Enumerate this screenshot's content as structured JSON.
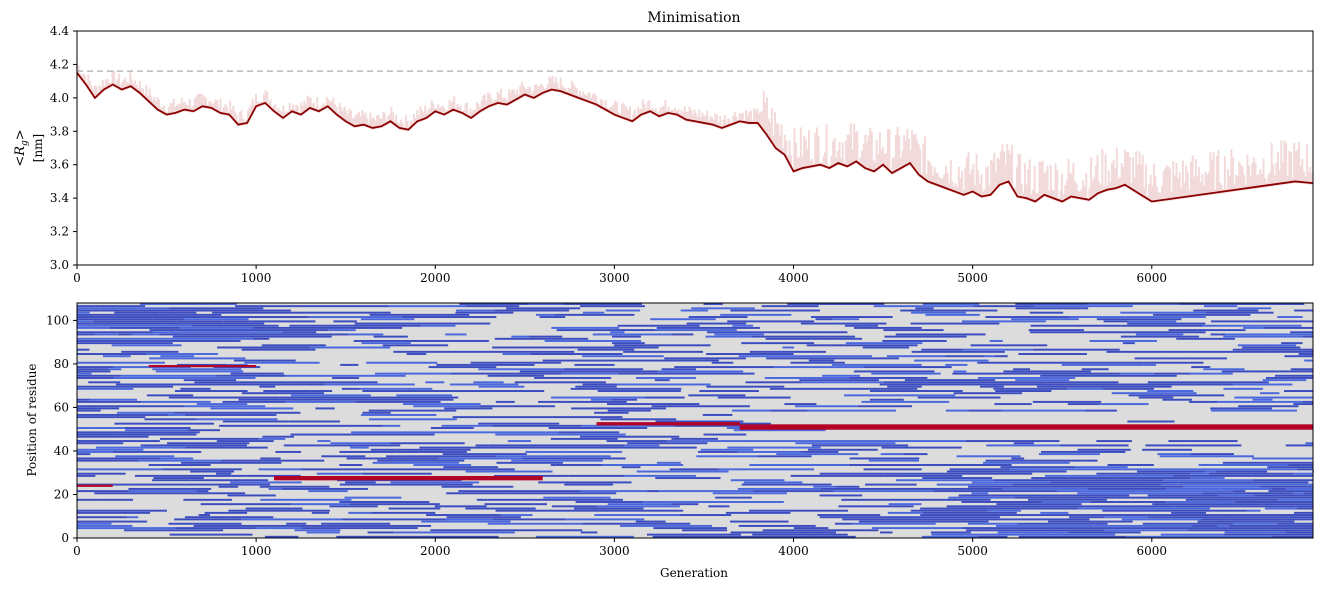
{
  "chart_data": [
    {
      "type": "line",
      "title": "Minimisation",
      "xlabel": "",
      "ylabel_math": "<R",
      "ylabel_sub": "g",
      "ylabel_close": ">",
      "ylabel_unit": "[nm]",
      "xlim": [
        0,
        6900
      ],
      "ylim": [
        3.0,
        4.4
      ],
      "xticks": [
        0,
        1000,
        2000,
        3000,
        4000,
        5000,
        6000
      ],
      "xtick_labels": [
        "0",
        "1000",
        "2000",
        "3000",
        "4000",
        "5000",
        "6000"
      ],
      "yticks": [
        3.0,
        3.2,
        3.4,
        3.6,
        3.8,
        4.0,
        4.2,
        4.4
      ],
      "ytick_labels": [
        "3.0",
        "3.2",
        "3.4",
        "3.6",
        "3.8",
        "4.0",
        "4.2",
        "4.4"
      ],
      "reference_line": {
        "y": 4.16,
        "color": "#bbbbbb",
        "style": "dashed"
      },
      "series": [
        {
          "color": "#8b0000",
          "x": [
            0,
            50,
            100,
            150,
            200,
            250,
            300,
            350,
            400,
            450,
            500,
            550,
            600,
            650,
            700,
            750,
            800,
            850,
            900,
            950,
            1000,
            1050,
            1100,
            1150,
            1200,
            1250,
            1300,
            1350,
            1400,
            1450,
            1500,
            1550,
            1600,
            1650,
            1700,
            1750,
            1800,
            1850,
            1900,
            1950,
            2000,
            2050,
            2100,
            2150,
            2200,
            2250,
            2300,
            2350,
            2400,
            2450,
            2500,
            2550,
            2600,
            2650,
            2700,
            2750,
            2800,
            2850,
            2900,
            2950,
            3000,
            3050,
            3100,
            3150,
            3200,
            3250,
            3300,
            3350,
            3400,
            3450,
            3500,
            3550,
            3600,
            3650,
            3700,
            3750,
            3800,
            3850,
            3900,
            3950,
            4000,
            4050,
            4100,
            4150,
            4200,
            4250,
            4300,
            4350,
            4400,
            4450,
            4500,
            4550,
            4600,
            4650,
            4700,
            4750,
            4800,
            4850,
            4900,
            4950,
            5000,
            5050,
            5100,
            5150,
            5200,
            5250,
            5300,
            5350,
            5400,
            5450,
            5500,
            5550,
            5600,
            5650,
            5700,
            5750,
            5800,
            5850,
            6000,
            6200,
            6400,
            6600,
            6800,
            6900
          ],
          "y": [
            4.15,
            4.08,
            4.0,
            4.05,
            4.08,
            4.05,
            4.07,
            4.03,
            3.98,
            3.93,
            3.9,
            3.91,
            3.93,
            3.92,
            3.95,
            3.94,
            3.91,
            3.9,
            3.84,
            3.85,
            3.95,
            3.97,
            3.92,
            3.88,
            3.92,
            3.9,
            3.94,
            3.92,
            3.95,
            3.9,
            3.86,
            3.83,
            3.84,
            3.82,
            3.83,
            3.86,
            3.82,
            3.81,
            3.86,
            3.88,
            3.92,
            3.9,
            3.93,
            3.91,
            3.88,
            3.92,
            3.95,
            3.97,
            3.96,
            3.99,
            4.02,
            4.0,
            4.03,
            4.05,
            4.04,
            4.02,
            4.0,
            3.98,
            3.96,
            3.93,
            3.9,
            3.88,
            3.86,
            3.9,
            3.92,
            3.89,
            3.91,
            3.9,
            3.87,
            3.86,
            3.85,
            3.84,
            3.82,
            3.84,
            3.86,
            3.85,
            3.85,
            3.78,
            3.7,
            3.66,
            3.56,
            3.58,
            3.59,
            3.6,
            3.58,
            3.61,
            3.59,
            3.62,
            3.58,
            3.56,
            3.6,
            3.55,
            3.58,
            3.61,
            3.54,
            3.5,
            3.48,
            3.46,
            3.44,
            3.42,
            3.44,
            3.41,
            3.42,
            3.48,
            3.5,
            3.41,
            3.4,
            3.38,
            3.42,
            3.4,
            3.38,
            3.41,
            3.4,
            3.39,
            3.43,
            3.45,
            3.46,
            3.48,
            3.38,
            3.41,
            3.44,
            3.47,
            3.5,
            3.49
          ]
        }
      ]
    },
    {
      "type": "heatmap",
      "title": "",
      "xlabel": "Generation",
      "ylabel": "Position of residue",
      "xlim": [
        0,
        6900
      ],
      "ylim": [
        0,
        108
      ],
      "xticks": [
        0,
        1000,
        2000,
        3000,
        4000,
        5000,
        6000
      ],
      "xtick_labels": [
        "0",
        "1000",
        "2000",
        "3000",
        "4000",
        "5000",
        "6000"
      ],
      "yticks": [
        0,
        20,
        40,
        60,
        80,
        100
      ],
      "ytick_labels": [
        "0",
        "20",
        "40",
        "60",
        "80",
        "100"
      ],
      "colors": {
        "background": "#dcdcdc",
        "strand": "#3b4cc0",
        "helix": "#b40426"
      },
      "helix_bands": [
        {
          "x0": 1100,
          "x1": 2600,
          "y": 27.5,
          "h": 2.0
        },
        {
          "x0": 3700,
          "x1": 6900,
          "y": 51.0,
          "h": 2.5
        },
        {
          "x0": 2900,
          "x1": 3700,
          "y": 52.5,
          "h": 1.5
        },
        {
          "x0": 0,
          "x1": 200,
          "y": 24.0,
          "h": 1.0
        },
        {
          "x0": 400,
          "x1": 1000,
          "y": 79.0,
          "h": 1.0
        }
      ],
      "strand_regions": [
        {
          "x0": 4700,
          "x1": 6900,
          "y0": 0,
          "y1": 31
        },
        {
          "x0": 0,
          "x1": 1000,
          "y0": 88,
          "y1": 108
        }
      ]
    }
  ]
}
